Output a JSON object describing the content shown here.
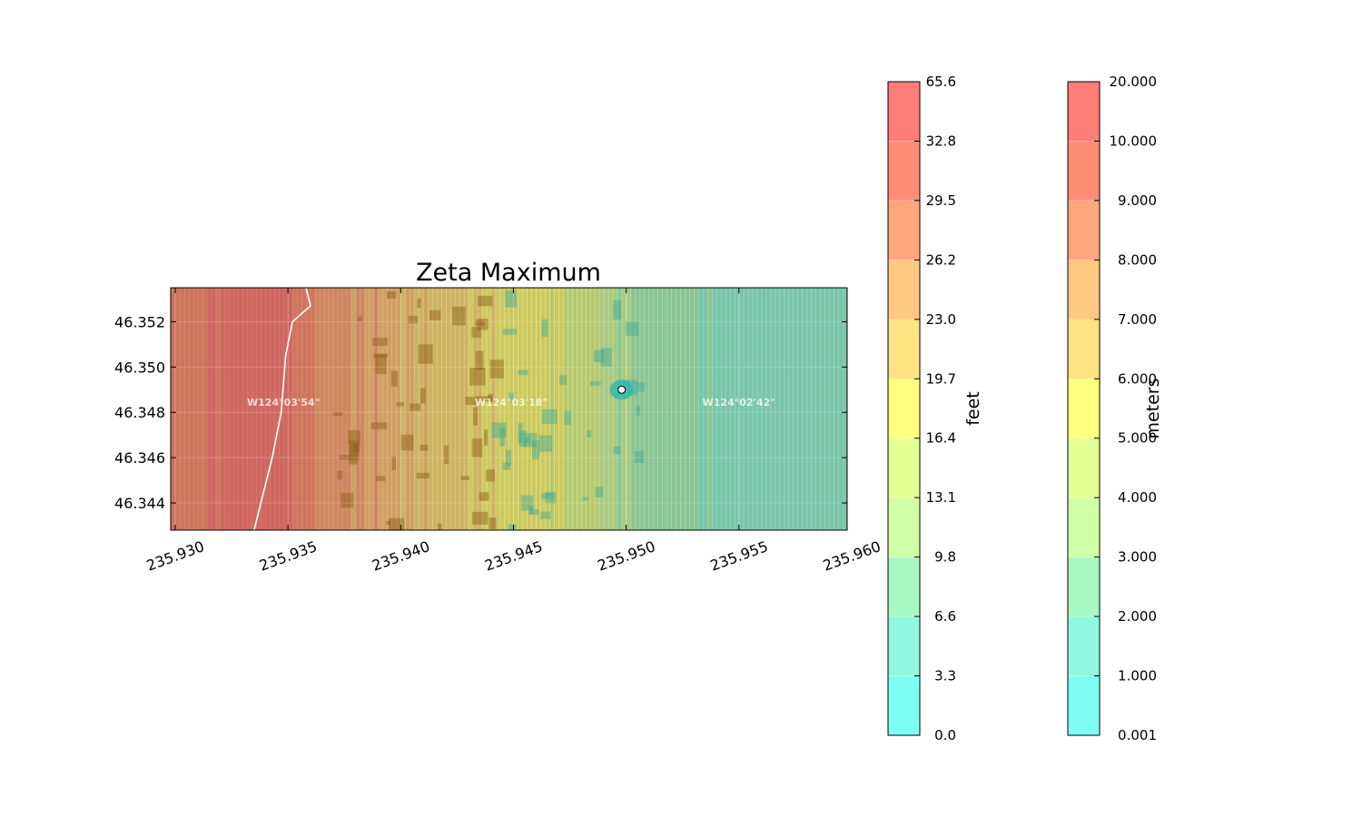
{
  "chart_data": {
    "type": "heatmap",
    "title": "Zeta Maximum",
    "xlabel": "",
    "ylabel": "",
    "xlim": [
      235.9298,
      235.9598
    ],
    "ylim": [
      46.3428,
      46.3535
    ],
    "x_ticks": [
      "235.930",
      "235.935",
      "235.940",
      "235.945",
      "235.950",
      "235.955",
      "235.960"
    ],
    "x_tick_values": [
      235.93,
      235.935,
      235.94,
      235.945,
      235.95,
      235.955,
      235.96
    ],
    "y_ticks": [
      "46.352",
      "46.350",
      "46.348",
      "46.346",
      "46.344"
    ],
    "y_tick_values": [
      46.352,
      46.35,
      46.348,
      46.346,
      46.344
    ],
    "grid": true,
    "map_labels": [
      {
        "text": "W124°03'54\"",
        "lon": 235.9348,
        "lat": 46.3483
      },
      {
        "text": "W124°03'18\"",
        "lon": 235.9449,
        "lat": 46.3483
      },
      {
        "text": "W124°02'42\"",
        "lon": 235.955,
        "lat": 46.3483
      }
    ],
    "marker": {
      "lon": 235.9498,
      "lat": 46.349
    },
    "field_profile": [
      {
        "lon": 235.9298,
        "value_m": 9.6
      },
      {
        "lon": 235.9345,
        "value_m": 10.5
      },
      {
        "lon": 235.937,
        "value_m": 8.4
      },
      {
        "lon": 235.94,
        "value_m": 7.3
      },
      {
        "lon": 235.944,
        "value_m": 5.8
      },
      {
        "lon": 235.947,
        "value_m": 5.2
      },
      {
        "lon": 235.9505,
        "value_m": 2.6
      },
      {
        "lon": 235.955,
        "value_m": 1.7
      },
      {
        "lon": 235.9598,
        "value_m": 1.5
      }
    ],
    "colorbars": [
      {
        "label": "feet",
        "ticks": [
          "0.0",
          "3.3",
          "6.6",
          "9.8",
          "13.1",
          "16.4",
          "19.7",
          "23.0",
          "26.2",
          "29.5",
          "32.8",
          "65.6"
        ]
      },
      {
        "label": "meters",
        "ticks": [
          "0.001",
          "1.000",
          "2.000",
          "3.000",
          "4.000",
          "5.000",
          "6.000",
          "7.000",
          "8.000",
          "9.000",
          "10.000",
          "20.000"
        ]
      }
    ],
    "levels_m": [
      0.001,
      1,
      2,
      3,
      4,
      5,
      6,
      7,
      8,
      9,
      10,
      20
    ],
    "band_colors": [
      "#7ffff4",
      "#90f8df",
      "#a8f8c2",
      "#d0ffa8",
      "#e2ff94",
      "#ffff80",
      "#ffe282",
      "#ffc881",
      "#ffa67c",
      "#ff8d76",
      "#ff7c78"
    ]
  }
}
